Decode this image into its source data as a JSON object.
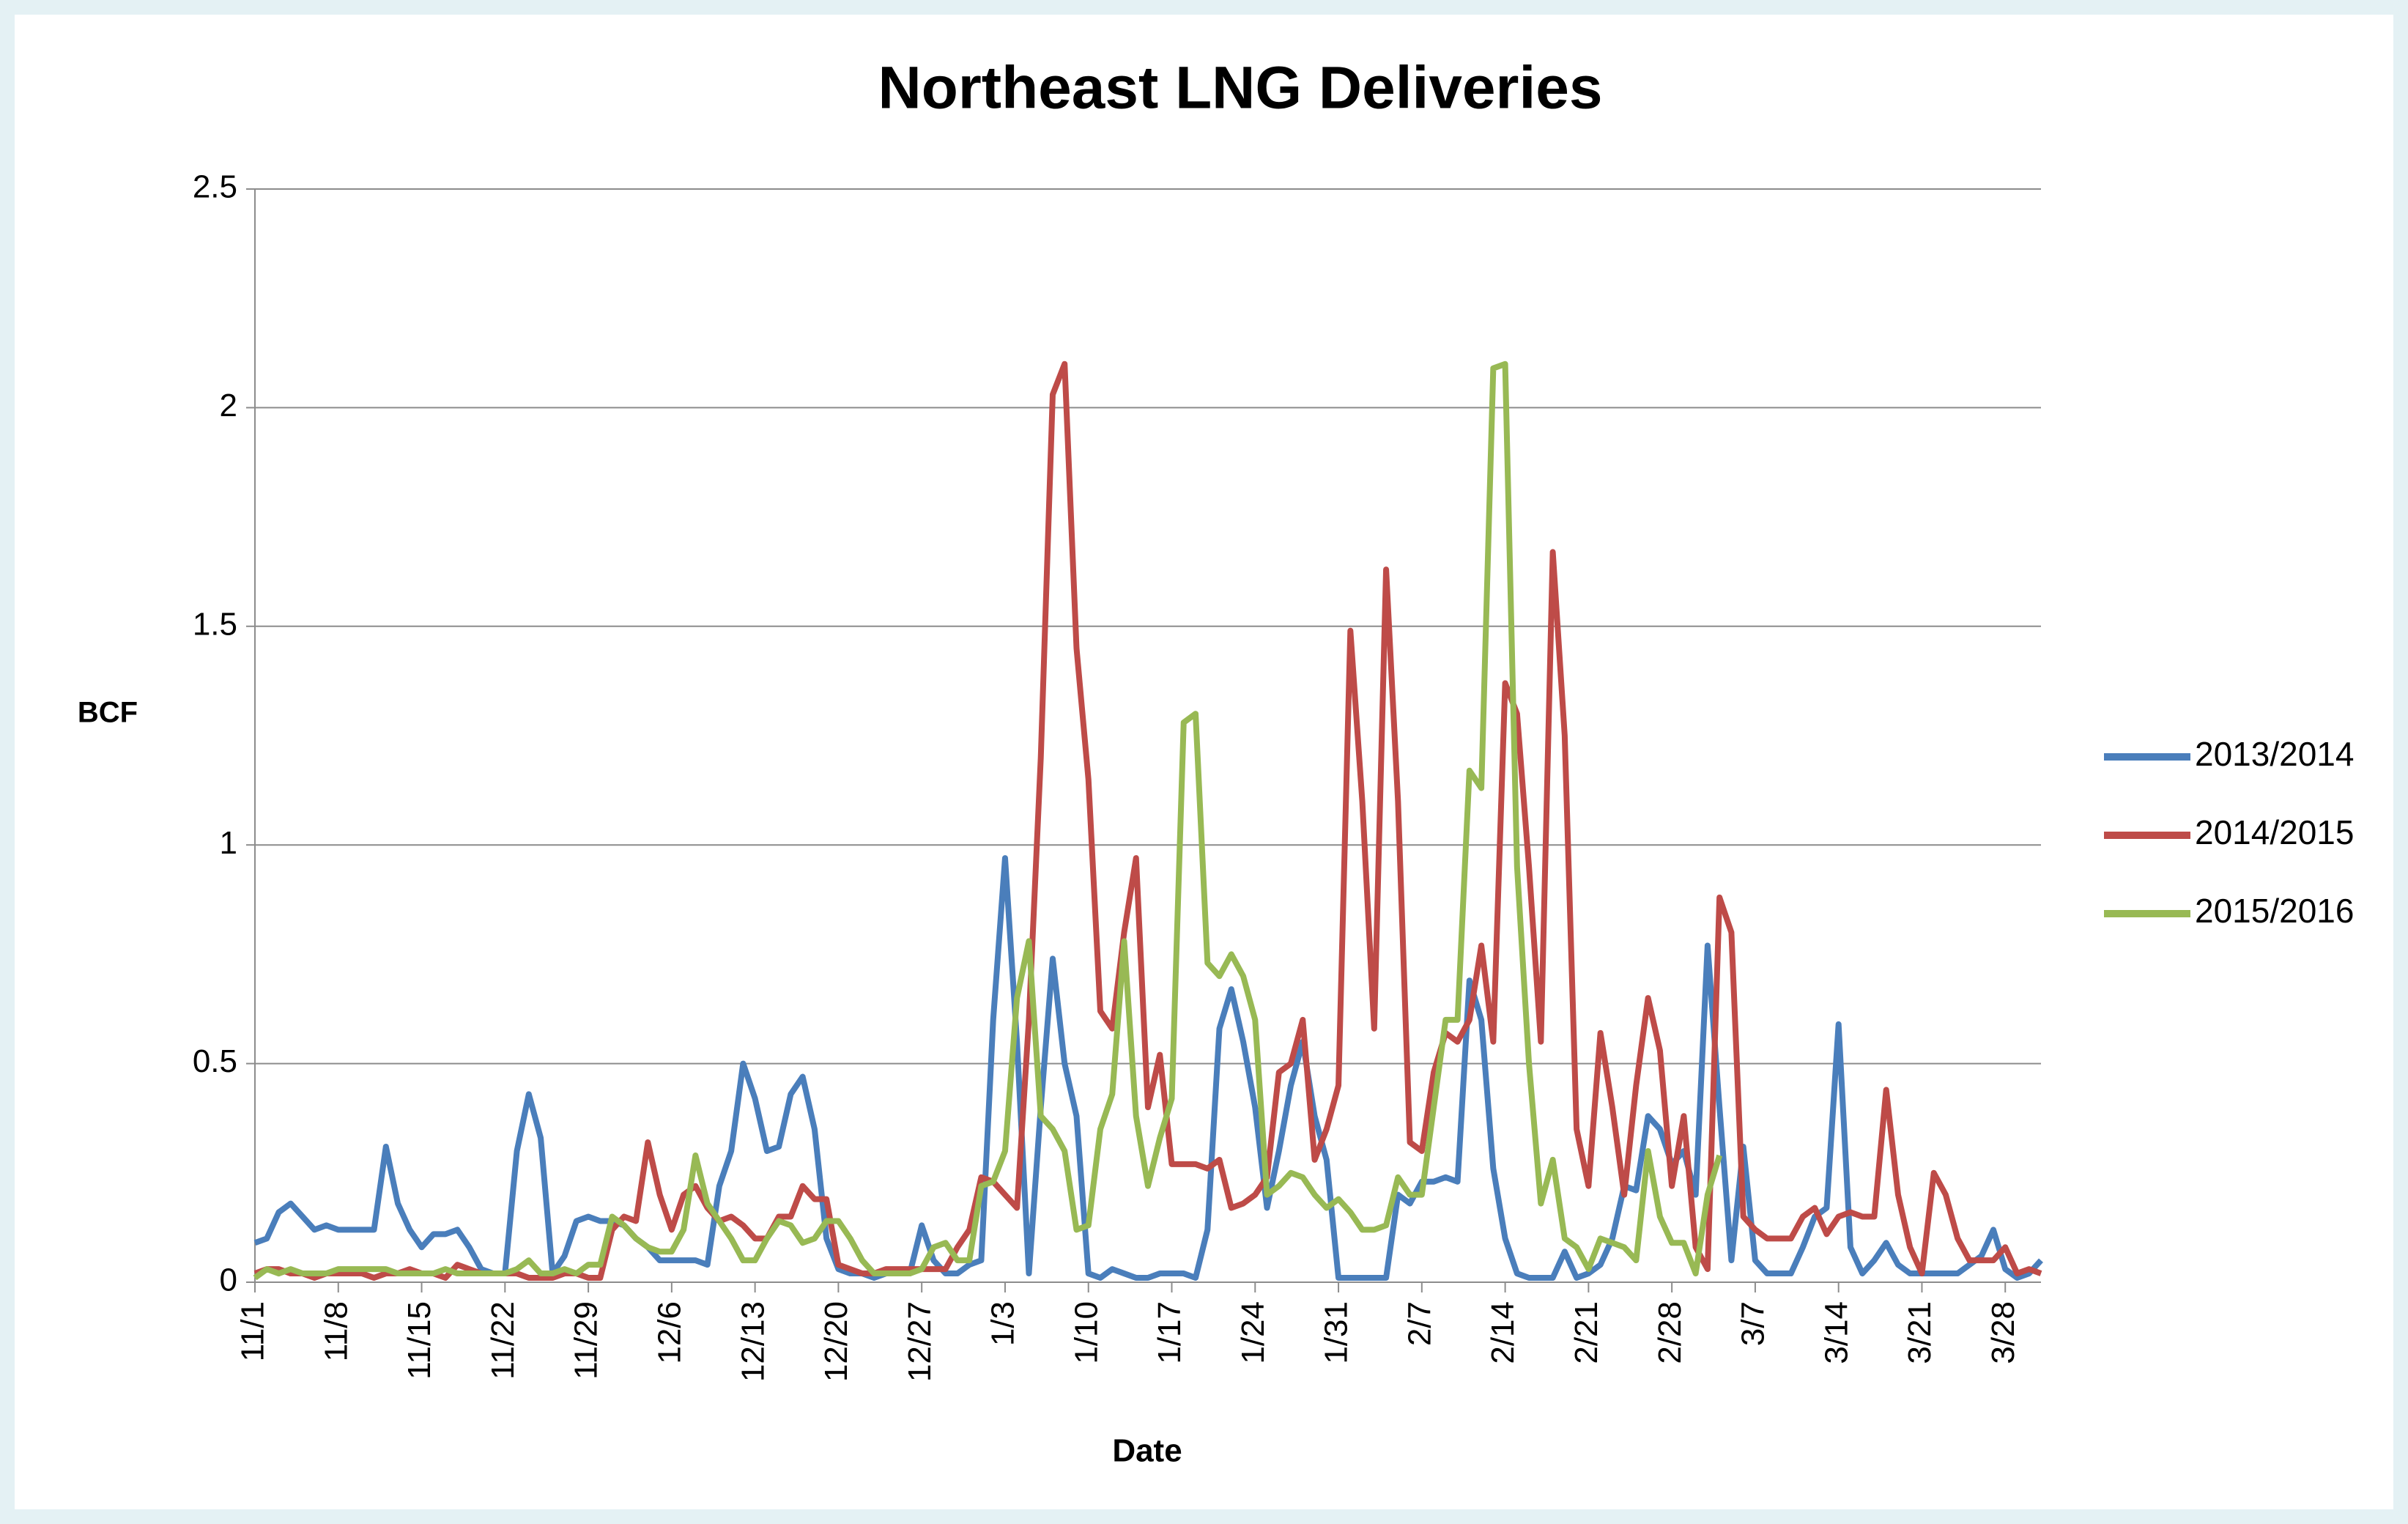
{
  "chart_data": {
    "type": "line",
    "title": "Northeast LNG Deliveries",
    "x_label": "Date",
    "y_label": "BCF",
    "categories": [
      "11/1",
      null,
      null,
      null,
      null,
      null,
      null,
      "11/8",
      null,
      null,
      null,
      null,
      null,
      null,
      "11/15",
      null,
      null,
      null,
      null,
      null,
      null,
      "11/22",
      null,
      null,
      null,
      null,
      null,
      null,
      "11/29",
      null,
      null,
      null,
      null,
      null,
      null,
      "12/6",
      null,
      null,
      null,
      null,
      null,
      null,
      "12/13",
      null,
      null,
      null,
      null,
      null,
      null,
      "12/20",
      null,
      null,
      null,
      null,
      null,
      null,
      "12/27",
      null,
      null,
      null,
      null,
      null,
      null,
      "1/3",
      null,
      null,
      null,
      null,
      null,
      null,
      "1/10",
      null,
      null,
      null,
      null,
      null,
      null,
      "1/17",
      null,
      null,
      null,
      null,
      null,
      null,
      "1/24",
      null,
      null,
      null,
      null,
      null,
      null,
      "1/31",
      null,
      null,
      null,
      null,
      null,
      null,
      "2/7",
      null,
      null,
      null,
      null,
      null,
      null,
      "2/14",
      null,
      null,
      null,
      null,
      null,
      null,
      "2/21",
      null,
      null,
      null,
      null,
      null,
      null,
      "2/28",
      null,
      null,
      null,
      null,
      null,
      null,
      "3/7",
      null,
      null,
      null,
      null,
      null,
      null,
      "3/14",
      null,
      null,
      null,
      null,
      null,
      null,
      "3/21",
      null,
      null,
      null,
      null,
      null,
      null,
      "3/28",
      null,
      null,
      null
    ],
    "series": [
      {
        "name": "2013/2014",
        "color": "#4a7ebb",
        "values": [
          0.09,
          0.1,
          0.16,
          0.18,
          0.15,
          0.12,
          0.13,
          0.12,
          0.12,
          0.12,
          0.12,
          0.31,
          0.18,
          0.12,
          0.08,
          0.11,
          0.11,
          0.12,
          0.08,
          0.03,
          0.02,
          0.02,
          0.3,
          0.43,
          0.33,
          0.02,
          0.06,
          0.14,
          0.15,
          0.14,
          0.14,
          0.13,
          0.1,
          0.08,
          0.05,
          0.05,
          0.05,
          0.05,
          0.04,
          0.22,
          0.3,
          0.5,
          0.42,
          0.3,
          0.31,
          0.43,
          0.47,
          0.35,
          0.1,
          0.03,
          0.02,
          0.02,
          0.01,
          0.02,
          0.02,
          0.02,
          0.13,
          0.05,
          0.02,
          0.02,
          0.04,
          0.05,
          0.6,
          0.97,
          0.55,
          0.02,
          0.4,
          0.74,
          0.5,
          0.38,
          0.02,
          0.01,
          0.03,
          0.02,
          0.01,
          0.01,
          0.02,
          0.02,
          0.02,
          0.01,
          0.12,
          0.58,
          0.67,
          0.55,
          0.4,
          0.17,
          0.3,
          0.45,
          0.55,
          0.38,
          0.28,
          0.01,
          0.01,
          0.01,
          0.01,
          0.01,
          0.2,
          0.18,
          0.23,
          0.23,
          0.24,
          0.23,
          0.69,
          0.6,
          0.26,
          0.1,
          0.02,
          0.01,
          0.01,
          0.01,
          0.07,
          0.01,
          0.02,
          0.04,
          0.1,
          0.22,
          0.21,
          0.38,
          0.35,
          0.27,
          0.3,
          0.2,
          0.77,
          0.4,
          0.05,
          0.31,
          0.05,
          0.02,
          0.02,
          0.02,
          0.08,
          0.15,
          0.17,
          0.59,
          0.08,
          0.02,
          0.05,
          0.09,
          0.04,
          0.02,
          0.02,
          0.02,
          0.02,
          0.02,
          0.04,
          0.06,
          0.12,
          0.03,
          0.01,
          0.02,
          0.05
        ]
      },
      {
        "name": "2014/2015",
        "color": "#be4b48",
        "values": [
          0.02,
          0.03,
          0.03,
          0.02,
          0.02,
          0.01,
          0.02,
          0.02,
          0.02,
          0.02,
          0.01,
          0.02,
          0.02,
          0.03,
          0.02,
          0.02,
          0.01,
          0.04,
          0.03,
          0.02,
          0.02,
          0.02,
          0.02,
          0.01,
          0.01,
          0.01,
          0.02,
          0.02,
          0.01,
          0.01,
          0.12,
          0.15,
          0.14,
          0.32,
          0.2,
          0.12,
          0.2,
          0.22,
          0.17,
          0.14,
          0.15,
          0.13,
          0.1,
          0.1,
          0.15,
          0.15,
          0.22,
          0.19,
          0.19,
          0.04,
          0.03,
          0.02,
          0.02,
          0.03,
          0.03,
          0.03,
          0.03,
          0.03,
          0.03,
          0.08,
          0.12,
          0.24,
          0.23,
          0.2,
          0.17,
          0.6,
          1.2,
          2.03,
          2.1,
          1.45,
          1.15,
          0.62,
          0.58,
          0.8,
          0.97,
          0.4,
          0.52,
          0.27,
          0.27,
          0.27,
          0.26,
          0.28,
          0.17,
          0.18,
          0.2,
          0.24,
          0.48,
          0.5,
          0.6,
          0.28,
          0.35,
          0.45,
          1.49,
          1.1,
          0.58,
          1.63,
          1.1,
          0.32,
          0.3,
          0.48,
          0.57,
          0.55,
          0.6,
          0.77,
          0.55,
          1.37,
          1.3,
          0.95,
          0.55,
          1.67,
          1.25,
          0.35,
          0.22,
          0.57,
          0.4,
          0.2,
          0.45,
          0.65,
          0.53,
          0.22,
          0.38,
          0.08,
          0.03,
          0.88,
          0.8,
          0.15,
          0.12,
          0.1,
          0.1,
          0.1,
          0.15,
          0.17,
          0.11,
          0.15,
          0.16,
          0.15,
          0.15,
          0.44,
          0.2,
          0.08,
          0.02,
          0.25,
          0.2,
          0.1,
          0.05,
          0.05,
          0.05,
          0.08,
          0.02,
          0.03,
          0.02
        ]
      },
      {
        "name": "2015/2016",
        "color": "#98b954",
        "values": [
          0.01,
          0.03,
          0.02,
          0.03,
          0.02,
          0.02,
          0.02,
          0.03,
          0.03,
          0.03,
          0.03,
          0.03,
          0.02,
          0.02,
          0.02,
          0.02,
          0.03,
          0.02,
          0.02,
          0.02,
          0.02,
          0.02,
          0.03,
          0.05,
          0.02,
          0.02,
          0.03,
          0.02,
          0.04,
          0.04,
          0.15,
          0.13,
          0.1,
          0.08,
          0.07,
          0.07,
          0.12,
          0.29,
          0.18,
          0.14,
          0.1,
          0.05,
          0.05,
          0.1,
          0.14,
          0.13,
          0.09,
          0.1,
          0.14,
          0.14,
          0.1,
          0.05,
          0.02,
          0.02,
          0.02,
          0.02,
          0.03,
          0.08,
          0.09,
          0.05,
          0.05,
          0.22,
          0.23,
          0.3,
          0.65,
          0.78,
          0.38,
          0.35,
          0.3,
          0.12,
          0.13,
          0.35,
          0.43,
          0.78,
          0.38,
          0.22,
          0.33,
          0.42,
          1.28,
          1.3,
          0.73,
          0.7,
          0.75,
          0.7,
          0.6,
          0.2,
          0.22,
          0.25,
          0.24,
          0.2,
          0.17,
          0.19,
          0.16,
          0.12,
          0.12,
          0.13,
          0.24,
          0.2,
          0.2,
          0.4,
          0.6,
          0.6,
          1.17,
          1.13,
          2.09,
          2.1,
          0.95,
          0.5,
          0.18,
          0.28,
          0.1,
          0.08,
          0.03,
          0.1,
          0.09,
          0.08,
          0.05,
          0.3,
          0.15,
          0.09,
          0.09,
          0.02,
          0.2,
          0.29,
          null,
          null,
          null,
          null,
          null,
          null,
          null,
          null,
          null,
          null,
          null,
          null,
          null,
          null,
          null,
          null,
          null,
          null,
          null,
          null,
          null,
          null,
          null,
          null,
          null,
          null,
          null
        ]
      }
    ],
    "ylim": [
      0,
      2.5
    ],
    "yticks": [
      0,
      {
        "value": 0.5,
        "label": "0.5"
      },
      1,
      {
        "value": 1.5,
        "label": "1.5"
      },
      2,
      {
        "value": 2.5,
        "label": "2.5"
      }
    ],
    "grid": true,
    "legend": "right"
  }
}
